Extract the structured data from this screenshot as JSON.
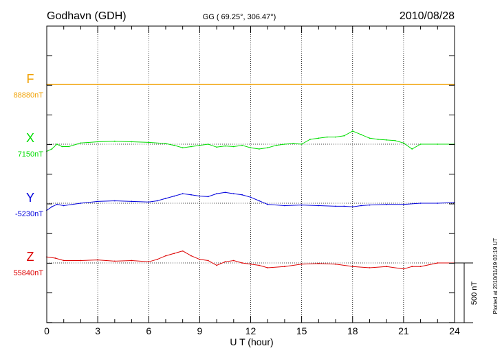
{
  "header": {
    "station": "Godhavn (GDH)",
    "coords": "GG ( 69.25°, 306.47°)",
    "date": "2010/08/28"
  },
  "side_note": "Plotted at 2010/11/19 03:19 UT",
  "chart_data": {
    "type": "line",
    "title": "Godhavn (GDH)",
    "xlabel": "U T (hour)",
    "ylabel": "",
    "xlim": [
      0,
      24
    ],
    "xticks": [
      0,
      3,
      6,
      9,
      12,
      15,
      18,
      21,
      24
    ],
    "grid": "vertical dotted at each 3 h; dotted baseline per component",
    "scale_bar": {
      "label": "500 nT",
      "value_nT": 500
    },
    "series": [
      {
        "name": "F",
        "baseline_label": "88880nT",
        "color": "#f0a000",
        "x": [
          0,
          3,
          6,
          9,
          12,
          15,
          18,
          21,
          24
        ],
        "values_offset_nT": [
          0,
          0,
          0,
          0,
          0,
          0,
          0,
          0,
          0
        ]
      },
      {
        "name": "X",
        "baseline_label": "7150nT",
        "color": "#00dd00",
        "x": [
          0,
          0.3,
          0.6,
          0.9,
          1.3,
          2,
          3,
          4,
          5,
          6,
          7,
          7.5,
          8,
          8.5,
          9,
          9.5,
          10,
          10.5,
          11,
          11.5,
          12,
          12.5,
          13,
          13.5,
          14,
          14.5,
          15,
          15.5,
          16,
          16.5,
          17,
          17.5,
          18,
          18.5,
          19,
          19.5,
          20,
          20.5,
          21,
          21.5,
          22,
          23,
          24
        ],
        "values_offset_nT": [
          -60,
          -40,
          0,
          -20,
          -20,
          10,
          20,
          25,
          20,
          15,
          5,
          -10,
          -30,
          -20,
          -10,
          0,
          -25,
          -15,
          -20,
          -10,
          -30,
          -40,
          -30,
          -10,
          0,
          5,
          0,
          40,
          50,
          60,
          60,
          70,
          110,
          80,
          50,
          40,
          35,
          30,
          10,
          -40,
          0,
          0,
          0
        ]
      },
      {
        "name": "Y",
        "baseline_label": "-5230nT",
        "color": "#0000dd",
        "x": [
          0,
          0.3,
          0.6,
          1,
          2,
          3,
          4,
          5,
          6,
          6.5,
          7,
          7.5,
          8,
          8.5,
          9,
          9.5,
          10,
          10.5,
          11,
          11.5,
          12,
          12.5,
          13,
          14,
          15,
          16,
          17,
          17.5,
          18,
          18.5,
          19,
          20,
          21,
          22,
          23,
          24
        ],
        "values_offset_nT": [
          -60,
          -30,
          -10,
          -20,
          0,
          15,
          20,
          15,
          10,
          20,
          40,
          60,
          80,
          70,
          60,
          55,
          80,
          90,
          80,
          70,
          50,
          20,
          -10,
          -20,
          -15,
          -20,
          -25,
          -25,
          -30,
          -20,
          -15,
          -10,
          -10,
          0,
          0,
          5
        ]
      },
      {
        "name": "Z",
        "baseline_label": "55840nT",
        "color": "#dd0000",
        "x": [
          0,
          0.5,
          1,
          2,
          3,
          4,
          5,
          6,
          6.5,
          7,
          7.5,
          8,
          8.5,
          9,
          9.5,
          10,
          10.5,
          11,
          11.5,
          12,
          12.5,
          13,
          14,
          15,
          16,
          17,
          18,
          19,
          20,
          21,
          21.5,
          22,
          23,
          24
        ],
        "values_offset_nT": [
          50,
          40,
          20,
          20,
          25,
          15,
          20,
          10,
          30,
          60,
          80,
          100,
          60,
          30,
          20,
          -20,
          10,
          20,
          0,
          -10,
          -20,
          -40,
          -30,
          -10,
          -5,
          -10,
          -30,
          -40,
          -30,
          -50,
          -30,
          -30,
          0,
          0
        ]
      }
    ]
  }
}
